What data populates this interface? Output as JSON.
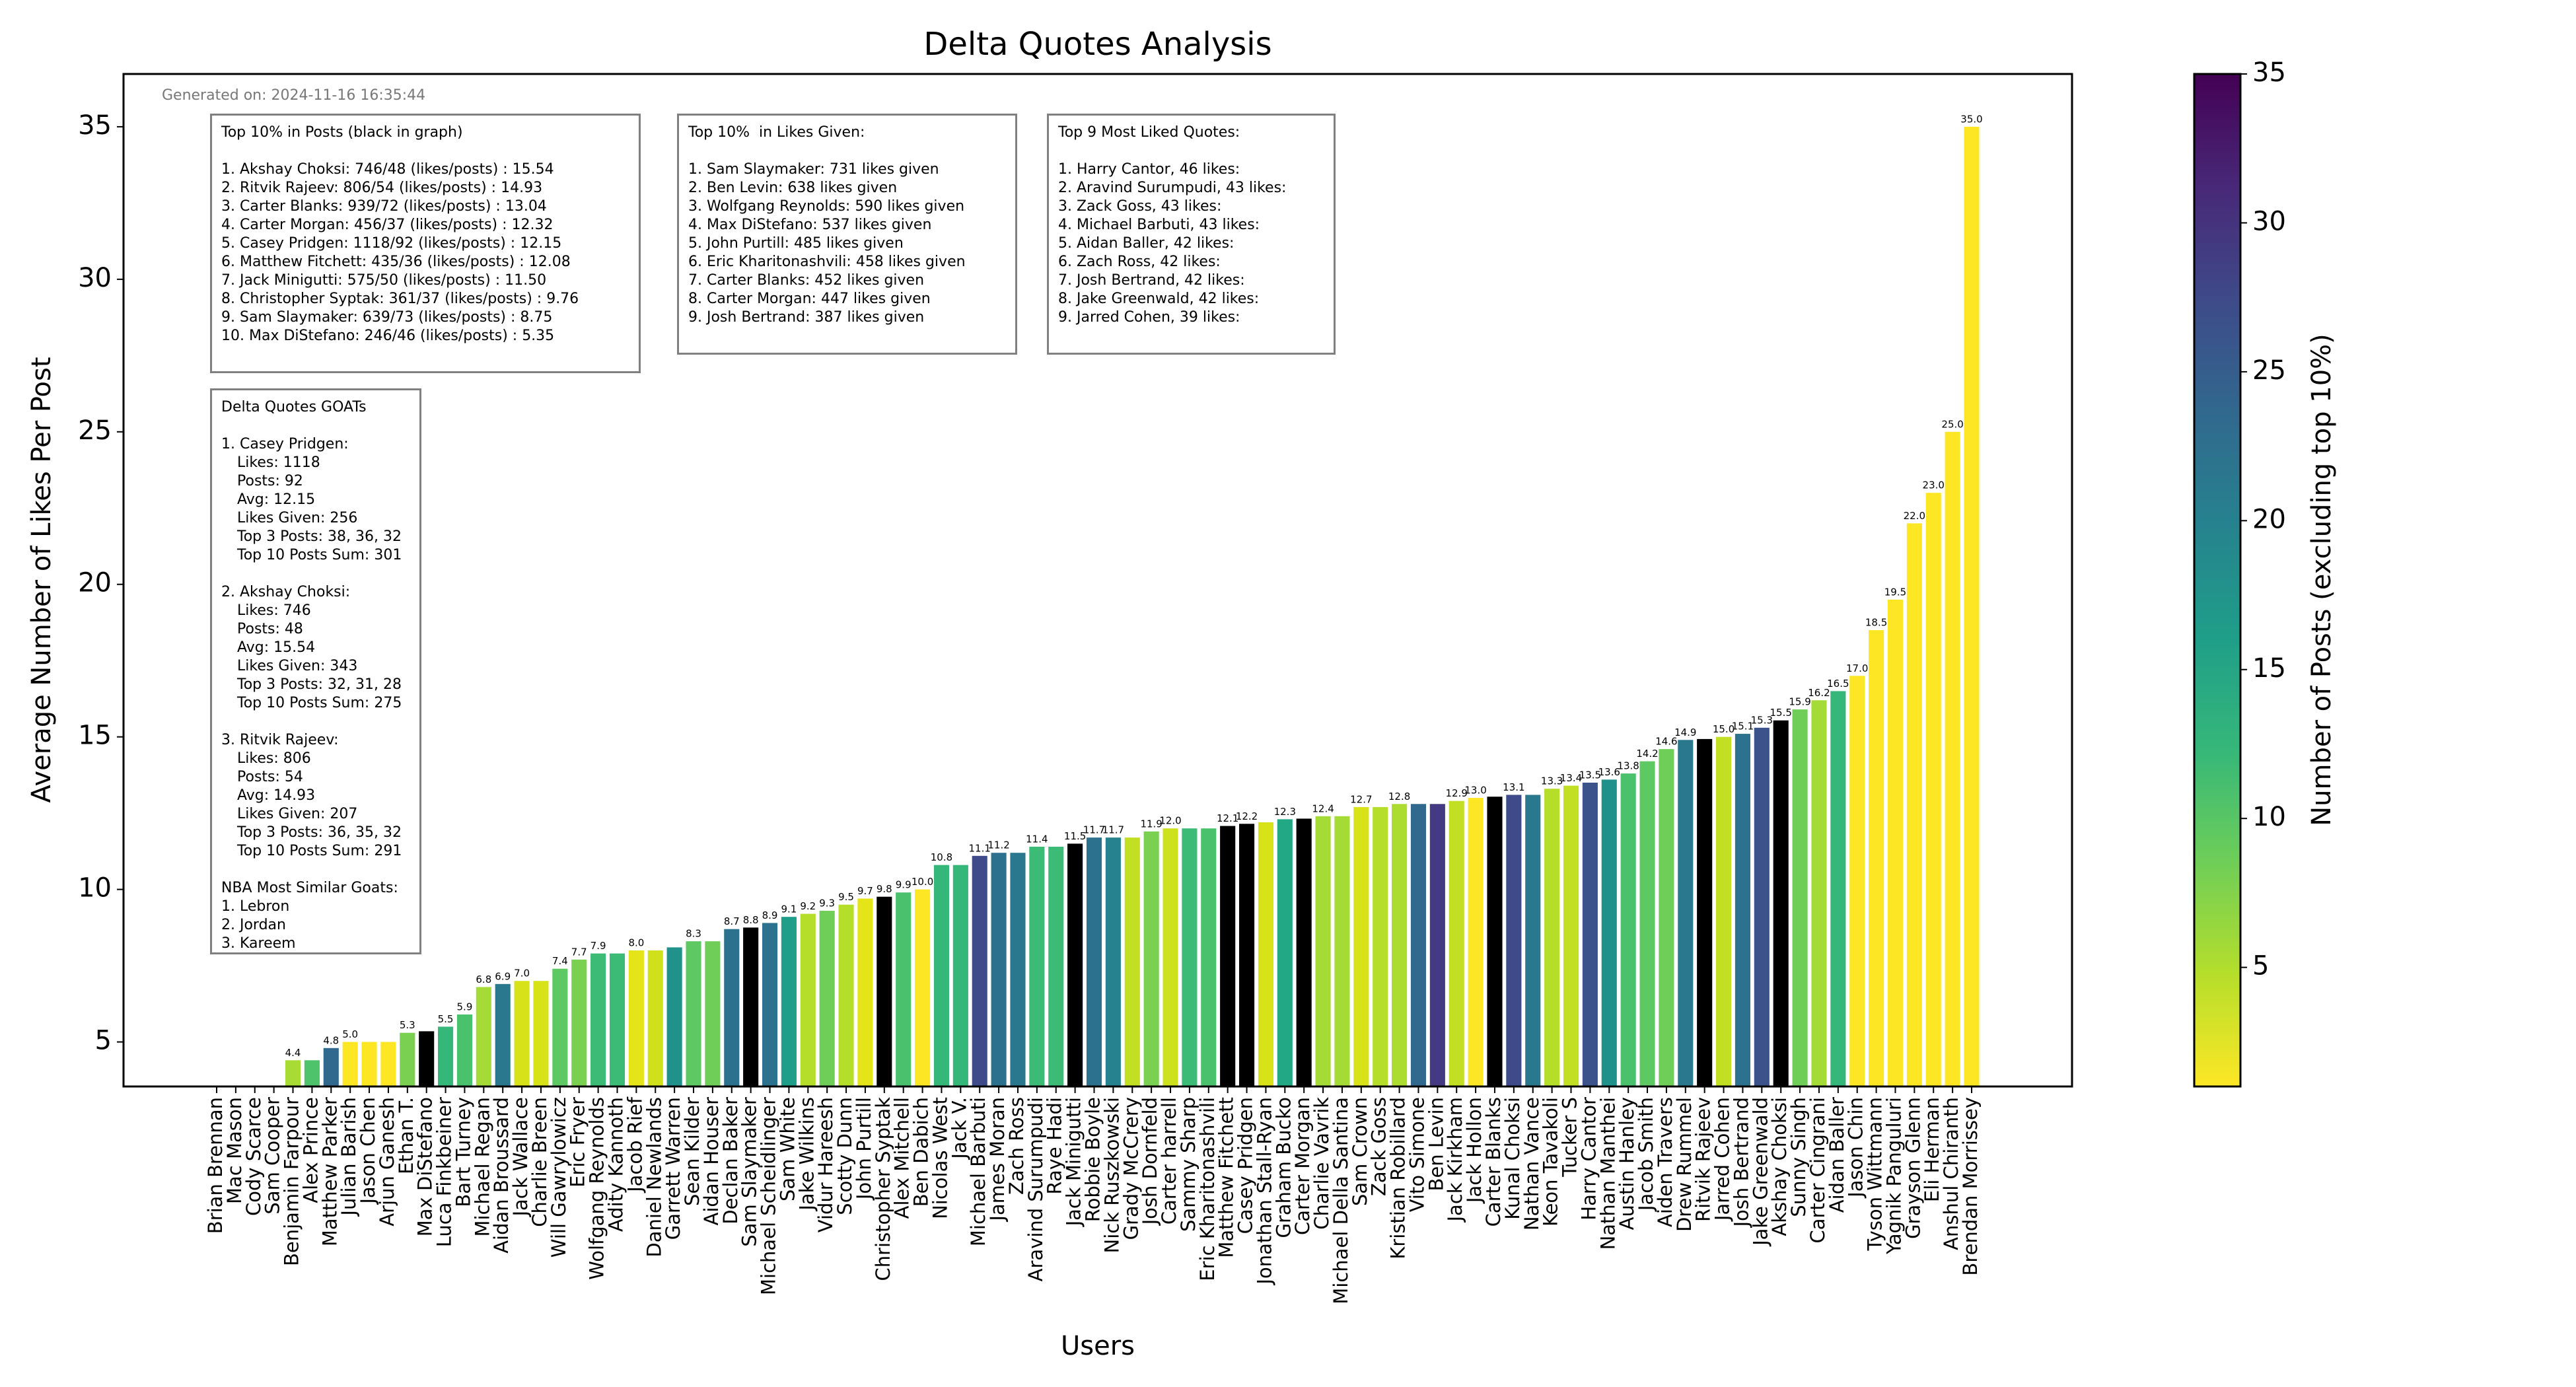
{
  "chart_data": {
    "type": "bar",
    "title": "Delta Quotes Analysis",
    "generated": "Generated on: 2024-11-16 16:35:44",
    "x_label": "Users",
    "y_label": "Average Number of Likes Per Post",
    "categories": [
      "Brian Brennan",
      "Mac Mason",
      "Cody Scarce",
      "Sam Cooper",
      "Benjamin Farpour",
      "Alex Prince",
      "Matthew Parker",
      "Julian Barish",
      "Jason Chen",
      "Arjun Ganesh",
      "Ethan T.",
      "Max DiStefano",
      "Luca Finkbeiner",
      "Bart Turney",
      "Michael Regan",
      "Aidan Broussard",
      "Jack Wallace",
      "Charlie Breen",
      "Will Gawrylowicz",
      "Eric Fryer",
      "Wolfgang Reynolds",
      "Adity Kannoth",
      "Jacob Rief",
      "Daniel Newlands",
      "Garrett Warren",
      "Sean Kilder",
      "Aidan Houser",
      "Declan Baker",
      "Sam Slaymaker",
      "Michael Scheidlinger",
      "Sam White",
      "Jake Wilkins",
      "Vidur Hareesh",
      "Scotty Dunn",
      "John Purtill",
      "Christopher Syptak",
      "Alex Mitchell",
      "Ben Dabich",
      "Nicolas West",
      "Jack V.",
      "Michael Barbuti",
      "James Moran",
      "Zach Ross",
      "Aravind Surumpudi",
      "Raye Hadi",
      "Jack Minigutti",
      "Robbie Boyle",
      "Nick Ruszkowski",
      "Grady McCrery",
      "Josh Dornfeld",
      "Carter harrell",
      "Sammy Sharp",
      "Eric Kharitonashvili",
      "Matthew Fitchett",
      "Casey Pridgen",
      "Jonathan Stall-Ryan",
      "Graham Bucko",
      "Carter Morgan",
      "Charlie Vavrik",
      "Michael Della Santina",
      "Sam Crown",
      "Zack Goss",
      "Kristian Robillard",
      "Vito Simone",
      "Ben Levin",
      "Jack Kirkham",
      "Jack Hollon",
      "Carter Blanks",
      "Kunal Choksi",
      "Nathan Vance",
      "Keon Tavakoli",
      "Tucker S",
      "Harry Cantor",
      "Nathan Manthei",
      "Austin Hanley",
      "Jacob Smith",
      "Aiden Travers",
      "Drew Rummel",
      "Ritvik Rajeev",
      "Jarred Cohen",
      "Josh Bertrand",
      "Jake Greenwald",
      "Akshay Choksi",
      "Sunny Singh",
      "Carter Cingrani",
      "Aidan Baller",
      "Jason Chin",
      "Tyson Wittmann",
      "Yagnik Panguluri",
      "Grayson Glenn",
      "Eli Herman",
      "Anshul Chiranth",
      "Brendan Morrissey"
    ],
    "values": [
      null,
      null,
      null,
      null,
      4.4,
      4.4,
      4.8,
      5.0,
      5.0,
      5.0,
      5.3,
      5.35,
      5.5,
      5.9,
      6.8,
      6.9,
      7.0,
      7.0,
      7.4,
      7.7,
      7.9,
      7.9,
      8.0,
      8.0,
      8.1,
      8.3,
      8.3,
      8.7,
      8.75,
      8.9,
      9.1,
      9.2,
      9.3,
      9.5,
      9.7,
      9.76,
      9.9,
      10.0,
      10.8,
      10.8,
      11.1,
      11.2,
      11.2,
      11.4,
      11.4,
      11.5,
      11.7,
      11.7,
      11.7,
      11.9,
      12.0,
      12.0,
      12.0,
      12.08,
      12.15,
      12.2,
      12.3,
      12.32,
      12.4,
      12.4,
      12.7,
      12.7,
      12.8,
      12.8,
      12.8,
      12.9,
      13.0,
      13.04,
      13.1,
      13.1,
      13.3,
      13.4,
      13.5,
      13.6,
      13.8,
      14.2,
      14.6,
      14.9,
      14.93,
      15.0,
      15.1,
      15.3,
      15.54,
      15.9,
      16.2,
      16.5,
      17.0,
      18.5,
      19.5,
      22.0,
      23.0,
      25.0,
      35.0
    ],
    "value_labels": [
      null,
      null,
      null,
      null,
      "4.4",
      null,
      "4.8",
      "5.0",
      null,
      null,
      "5.3",
      null,
      "5.5",
      "5.9",
      "6.8",
      "6.9",
      "7.0",
      null,
      "7.4",
      "7.7",
      "7.9",
      null,
      "8.0",
      null,
      null,
      "8.3",
      null,
      "8.7",
      "8.8",
      "8.9",
      "9.1",
      "9.2",
      "9.3",
      "9.5",
      "9.7",
      "9.8",
      "9.9",
      "10.0",
      "10.8",
      null,
      "11.1",
      "11.2",
      null,
      "11.4",
      null,
      "11.5",
      "11.7",
      "11.7",
      null,
      "11.9",
      "12.0",
      null,
      null,
      "12.1",
      "12.2",
      null,
      "12.3",
      null,
      "12.4",
      null,
      "12.7",
      null,
      "12.8",
      null,
      null,
      "12.9",
      "13.0",
      null,
      "13.1",
      null,
      "13.3",
      "13.4",
      "13.5",
      "13.6",
      "13.8",
      "14.2",
      "14.6",
      "14.9",
      null,
      "15.0",
      "15.1",
      "15.3",
      "15.5",
      "15.9",
      "16.2",
      "16.5",
      "17.0",
      "18.5",
      "19.5",
      "22.0",
      "23.0",
      "25.0",
      "35.0"
    ],
    "colors": [
      "#fde725",
      "#fde725",
      "#fde725",
      "#fde725",
      "#a8db34",
      "#4ec36b",
      "#31688e",
      "#fde725",
      "#fde725",
      "#fde725",
      "#7ad151",
      "#000000",
      "#35b779",
      "#4ac16d",
      "#a5db36",
      "#2a788e",
      "#d8e219",
      "#d8e219",
      "#5ec962",
      "#7ad151",
      "#3bbb75",
      "#3bbb75",
      "#e5e419",
      "#d0e11c",
      "#21918c",
      "#5ec962",
      "#6ece58",
      "#2c728e",
      "#000000",
      "#2c728e",
      "#1f9e89",
      "#b5de2b",
      "#6ece58",
      "#b5de2b",
      "#e5e419",
      "#000000",
      "#4ac16d",
      "#fde725",
      "#35b779",
      "#35b779",
      "#3e4a89",
      "#2c728e",
      "#2a788e",
      "#3bbb75",
      "#3bbb75",
      "#000000",
      "#2c728e",
      "#26828e",
      "#c2df23",
      "#7ad151",
      "#cde11d",
      "#3bbb75",
      "#4ac16d",
      "#000000",
      "#000000",
      "#d8e219",
      "#22a884",
      "#000000",
      "#a5db36",
      "#a5db36",
      "#d8e219",
      "#b5de2b",
      "#addc30",
      "#31688e",
      "#443983",
      "#c2df23",
      "#fde725",
      "#000000",
      "#3e4a89",
      "#2a788e",
      "#b5de2b",
      "#c2df23",
      "#3b528b",
      "#21918c",
      "#4ac16d",
      "#5ec962",
      "#6ece58",
      "#2a788e",
      "#000000",
      "#c2df23",
      "#2c728e",
      "#3b528b",
      "#000000",
      "#6ece58",
      "#a5db36",
      "#35b779",
      "#fde725",
      "#fde725",
      "#fde725",
      "#fde725",
      "#fde725",
      "#fde725",
      "#fde725"
    ],
    "ylim": [
      3.54,
      36.73
    ],
    "yticks": [
      5,
      10,
      15,
      20,
      25,
      30,
      35
    ],
    "colorbar": {
      "label": "Number of Posts (excluding top 10%)",
      "lim": [
        1,
        35
      ],
      "ticks": [
        5,
        10,
        15,
        20,
        25,
        30,
        35
      ],
      "colors": [
        "#fde725",
        "#b5de2b",
        "#6ece58",
        "#35b779",
        "#1f9e89",
        "#26828e",
        "#31688e",
        "#3e4a89",
        "#482878",
        "#440154"
      ]
    },
    "boxes": [
      {
        "paragraphs": [
          [
            "Top 10% in Posts (black in graph)"
          ],
          [
            "1. Akshay Choksi: 746/48 (likes/posts) : 15.54",
            "2. Ritvik Rajeev: 806/54 (likes/posts) : 14.93",
            "3. Carter Blanks: 939/72 (likes/posts) : 13.04",
            "4. Carter Morgan: 456/37 (likes/posts) : 12.32",
            "5. Casey Pridgen: 1118/92 (likes/posts) : 12.15",
            "6. Matthew Fitchett: 435/36 (likes/posts) : 12.08",
            "7. Jack Minigutti: 575/50 (likes/posts) : 11.50",
            "8. Christopher Syptak: 361/37 (likes/posts) : 9.76",
            "9. Sam Slaymaker: 639/73 (likes/posts) : 8.75",
            "10. Max DiStefano: 246/46 (likes/posts) : 5.35"
          ]
        ]
      },
      {
        "paragraphs": [
          [
            "Top 10%  in Likes Given:"
          ],
          [
            "1. Sam Slaymaker: 731 likes given",
            "2. Ben Levin: 638 likes given",
            "3. Wolfgang Reynolds: 590 likes given",
            "4. Max DiStefano: 537 likes given",
            "5. John Purtill: 485 likes given",
            "6. Eric Kharitonashvili: 458 likes given",
            "7. Carter Blanks: 452 likes given",
            "8. Carter Morgan: 447 likes given",
            "9. Josh Bertrand: 387 likes given"
          ]
        ]
      },
      {
        "paragraphs": [
          [
            "Top 9 Most Liked Quotes:"
          ],
          [
            "1. Harry Cantor, 46 likes:",
            "2. Aravind Surumpudi, 43 likes:",
            "3. Zack Goss, 43 likes:",
            "4. Michael Barbuti, 43 likes:",
            "5. Aidan Baller, 42 likes:",
            "6. Zach Ross, 42 likes:",
            "7. Josh Bertrand, 42 likes:",
            "8. Jake Greenwald, 42 likes:",
            "9. Jarred Cohen, 39 likes:"
          ]
        ]
      },
      {
        "paragraphs": [
          [
            "Delta Quotes GOATs"
          ],
          [
            "1. Casey Pridgen:",
            "Likes: 1118",
            "Posts: 92",
            "Avg: 12.15",
            "Likes Given: 256",
            "Top 3 Posts: 38, 36, 32",
            "Top 10 Posts Sum: 301"
          ],
          [
            "2. Akshay Choksi:",
            "Likes: 746",
            "Posts: 48",
            "Avg: 15.54",
            "Likes Given: 343",
            "Top 3 Posts: 32, 31, 28",
            "Top 10 Posts Sum: 275"
          ],
          [
            "3. Ritvik Rajeev:",
            "Likes: 806",
            "Posts: 54",
            "Avg: 14.93",
            "Likes Given: 207",
            "Top 3 Posts: 36, 35, 32",
            "Top 10 Posts Sum: 291"
          ],
          [
            "NBA Most Similar Goats:",
            "1. Lebron",
            "2. Jordan",
            "3. Kareem"
          ]
        ]
      }
    ]
  }
}
